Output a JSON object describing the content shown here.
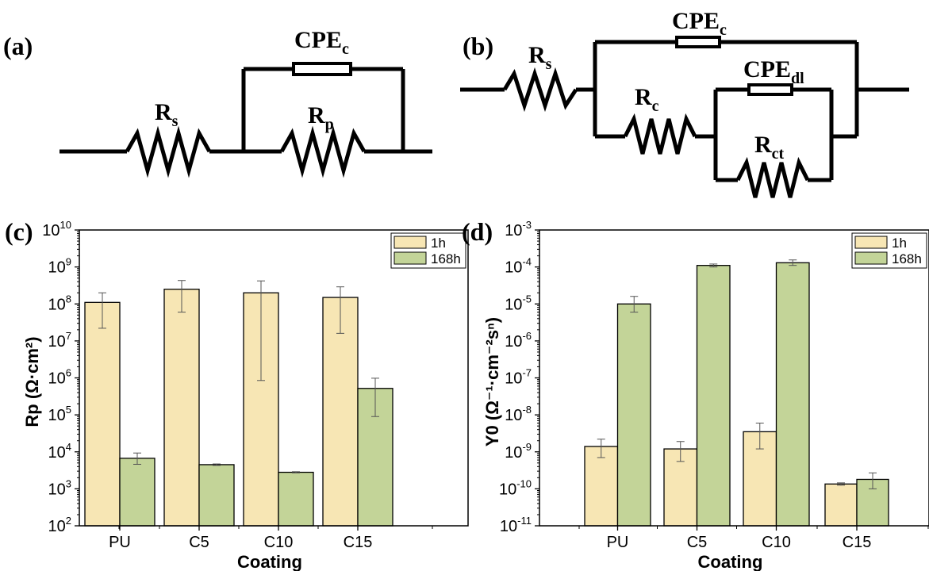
{
  "panels": {
    "a": {
      "label": "(a)",
      "cpe": "CPE",
      "cpe_sub": "c",
      "rs": "R",
      "rs_sub": "s",
      "rp": "R",
      "rp_sub": "p"
    },
    "b": {
      "label": "(b)",
      "cpe_c": "CPE",
      "cpe_c_sub": "c",
      "cpe_dl": "CPE",
      "cpe_dl_sub": "dl",
      "rs": "R",
      "rs_sub": "s",
      "rc": "R",
      "rc_sub": "c",
      "rct": "R",
      "rct_sub": "ct"
    },
    "c": {
      "label": "(c)"
    },
    "d": {
      "label": "(d)"
    }
  },
  "colors": {
    "bar_1h": "#f7e6b4",
    "bar_168h": "#c3d498",
    "stroke": "#000000"
  },
  "chart_data": [
    {
      "panel": "c",
      "type": "bar",
      "yscale": "log",
      "ylim": [
        100,
        10000000000
      ],
      "ytick_exponents": [
        2,
        3,
        4,
        5,
        6,
        7,
        8,
        9,
        10
      ],
      "xlabel": "Coating",
      "ylabel": "Rp (Ω·cm²)",
      "categories": [
        "PU",
        "C5",
        "C10",
        "C15"
      ],
      "legend_position": "top-right",
      "series": [
        {
          "name": "1h",
          "values": [
            110000000,
            250000000,
            200000000,
            150000000
          ],
          "err_low": [
            22000000,
            60000000,
            850000,
            16000000
          ],
          "err_high": [
            200000000,
            430000000,
            420000000,
            290000000
          ]
        },
        {
          "name": "168h",
          "values": [
            6700,
            4500,
            2800,
            520000
          ],
          "err_low": [
            4600,
            4300,
            2700,
            90000
          ],
          "err_high": [
            9300,
            4700,
            2900,
            980000
          ]
        }
      ]
    },
    {
      "panel": "d",
      "type": "bar",
      "yscale": "log",
      "ylim": [
        1e-11,
        0.001
      ],
      "ytick_exponents": [
        -11,
        -10,
        -9,
        -8,
        -7,
        -6,
        -5,
        -4,
        -3
      ],
      "xlabel": "Coating",
      "ylabel": "Y0 (Ω⁻¹·cm⁻²sⁿ)",
      "categories": [
        "PU",
        "C5",
        "C10",
        "C15"
      ],
      "legend_position": "top-right",
      "series": [
        {
          "name": "1h",
          "values": [
            1.4e-09,
            1.2e-09,
            3.5e-09,
            1.35e-10
          ],
          "err_low": [
            7e-10,
            5.5e-10,
            1.2e-09,
            1.25e-10
          ],
          "err_high": [
            2.2e-09,
            1.9e-09,
            6e-09,
            1.45e-10
          ]
        },
        {
          "name": "168h",
          "values": [
            1e-05,
            0.00011,
            0.00013,
            1.8e-10
          ],
          "err_low": [
            6e-06,
            0.0001,
            0.00011,
            1e-10
          ],
          "err_high": [
            1.6e-05,
            0.00012,
            0.000155,
            2.7e-10
          ]
        }
      ]
    }
  ]
}
